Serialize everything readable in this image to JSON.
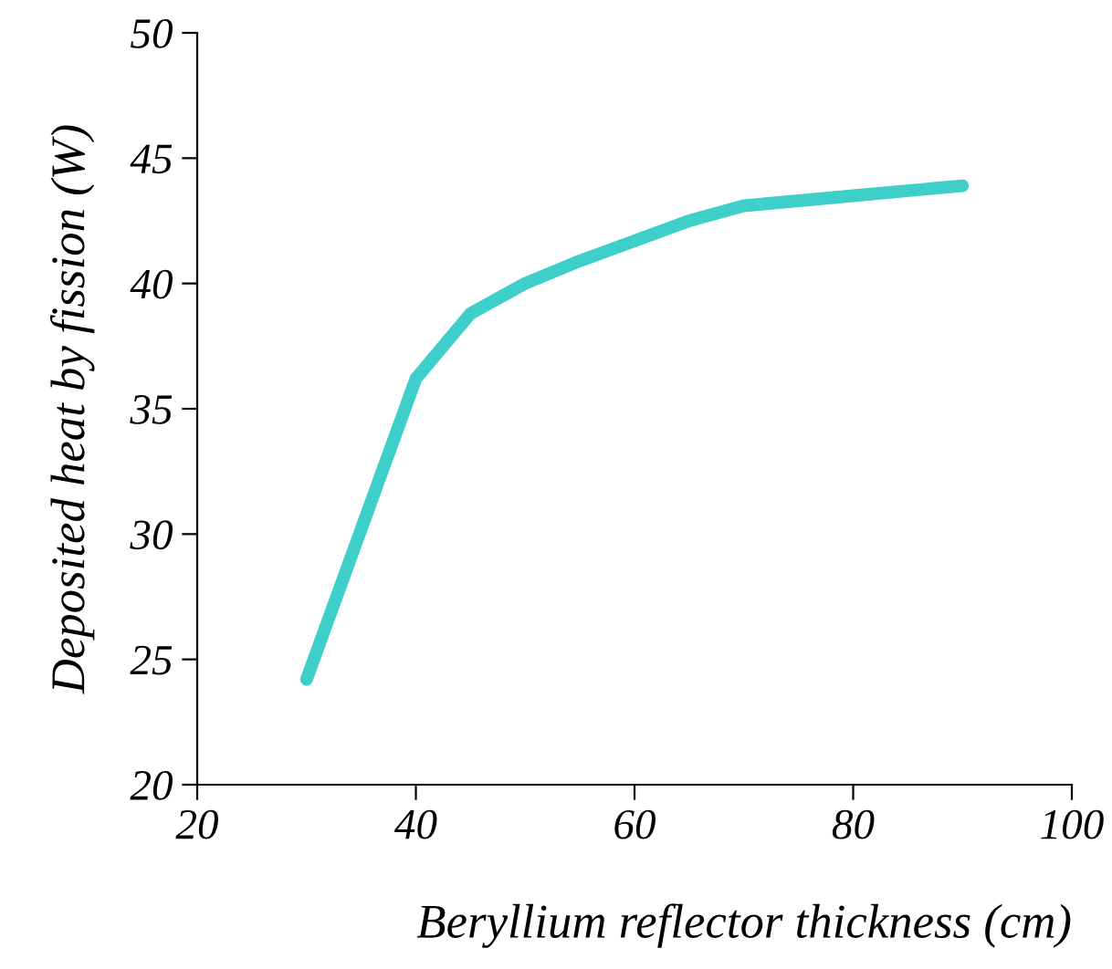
{
  "chart_data": {
    "type": "line",
    "xlabel": "Beryllium reflector thickness (cm)",
    "ylabel": "Deposited heat by fission (W)",
    "series": [
      {
        "color": "#3ecfcb",
        "x": [
          30,
          35,
          40,
          45,
          50,
          55,
          60,
          65,
          70,
          80,
          90
        ],
        "values": [
          24.2,
          30.2,
          36.2,
          38.8,
          40.0,
          40.9,
          41.7,
          42.5,
          43.1,
          43.5,
          43.9
        ]
      }
    ],
    "xlim": [
      20,
      100
    ],
    "xticks": [
      20,
      40,
      60,
      80,
      100
    ],
    "ylim": [
      20,
      50
    ],
    "yticks": [
      20,
      25,
      30,
      35,
      40,
      45,
      50
    ],
    "grid": false,
    "legend": false,
    "marker": "none",
    "line_style": "solid"
  }
}
